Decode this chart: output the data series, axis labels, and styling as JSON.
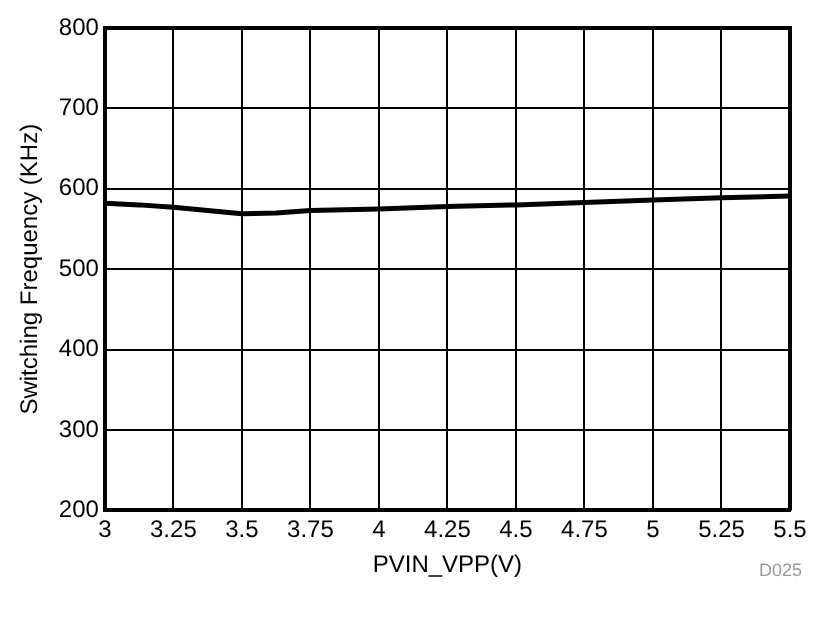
{
  "chart_data": {
    "type": "line",
    "xlabel": "PVIN_VPP(V)",
    "ylabel": "Switching Frequency (KHz)",
    "annotations": [
      "D025"
    ],
    "x": [
      3,
      3.125,
      3.25,
      3.375,
      3.5,
      3.625,
      3.75,
      4,
      4.25,
      4.5,
      4.75,
      5,
      5.25,
      5.5
    ],
    "series": [
      {
        "color": "#000000",
        "values": [
          582,
          580,
          577,
          573,
          569,
          570,
          573,
          575,
          578,
          580,
          583,
          586,
          589,
          591
        ]
      }
    ],
    "xlim": [
      3,
      5.5
    ],
    "xticks": [
      3,
      3.25,
      3.5,
      3.75,
      4,
      4.25,
      4.5,
      4.75,
      5,
      5.25,
      5.5
    ],
    "ylim": [
      200,
      800
    ],
    "yticks": [
      200,
      300,
      400,
      500,
      600,
      700,
      800
    ],
    "grid": true,
    "legend": false,
    "marker": "none",
    "line_style": "solid"
  }
}
